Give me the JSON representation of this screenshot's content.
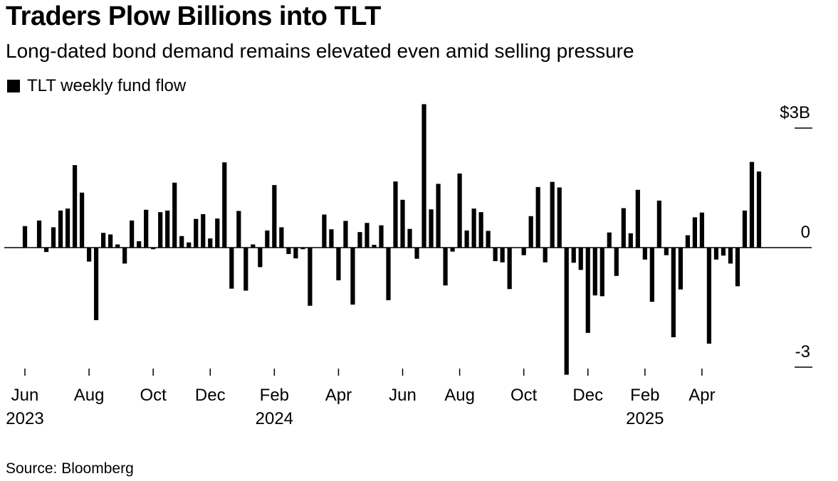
{
  "title": "Traders Plow Billions into TLT",
  "subtitle": "Long-dated bond demand remains elevated even amid selling pressure",
  "source": "Source: Bloomberg",
  "colors": {
    "bar": "#000000",
    "axis": "#000000",
    "background": "#ffffff"
  },
  "chart_data": {
    "type": "bar",
    "title": "Traders Plow Billions into TLT",
    "subtitle": "Long-dated bond demand remains elevated even amid selling pressure",
    "legend": [
      "TLT weekly fund flow"
    ],
    "legend_position": "top-left",
    "unit": "USD billions",
    "xlabel": "",
    "ylabel": "",
    "ylim": [
      -3.2,
      3.6
    ],
    "y_axis_side": "right",
    "y_ticks": [
      {
        "value": 3,
        "label": "$3B"
      },
      {
        "value": 0,
        "label": "0"
      },
      {
        "value": -3,
        "label": "-3"
      }
    ],
    "x_ticks": [
      {
        "label": "Jun",
        "year": "2023"
      },
      {
        "label": "Aug",
        "year": ""
      },
      {
        "label": "Oct",
        "year": ""
      },
      {
        "label": "Dec",
        "year": ""
      },
      {
        "label": "Feb",
        "year": "2024"
      },
      {
        "label": "Apr",
        "year": ""
      },
      {
        "label": "Jun",
        "year": ""
      },
      {
        "label": "Aug",
        "year": ""
      },
      {
        "label": "Oct",
        "year": ""
      },
      {
        "label": "Dec",
        "year": ""
      },
      {
        "label": "Feb",
        "year": "2025"
      },
      {
        "label": "Apr",
        "year": ""
      }
    ],
    "x_tick_weeks": [
      0,
      9,
      18,
      26,
      35,
      44,
      53,
      61,
      70,
      79,
      87,
      95
    ],
    "grid": false,
    "series": [
      {
        "name": "TLT weekly fund flow",
        "values": [
          0.54,
          0.0,
          0.68,
          -0.11,
          0.51,
          0.93,
          0.98,
          2.07,
          1.38,
          -0.35,
          -1.82,
          0.37,
          0.33,
          0.08,
          -0.4,
          0.68,
          0.16,
          0.95,
          -0.04,
          0.89,
          0.93,
          1.63,
          0.29,
          0.13,
          0.72,
          0.84,
          0.23,
          0.73,
          2.14,
          -1.03,
          0.92,
          -1.08,
          0.08,
          -0.49,
          0.43,
          1.57,
          0.51,
          -0.16,
          -0.27,
          -0.04,
          -1.46,
          0.0,
          0.83,
          0.46,
          -0.82,
          0.67,
          -1.43,
          0.39,
          0.62,
          0.07,
          0.56,
          -1.32,
          1.66,
          1.2,
          0.47,
          -0.28,
          3.6,
          0.96,
          1.6,
          -0.95,
          -0.1,
          1.86,
          0.43,
          0.98,
          0.89,
          0.42,
          -0.34,
          -0.37,
          -1.04,
          0.0,
          -0.19,
          0.79,
          1.52,
          -0.37,
          1.65,
          1.51,
          -3.19,
          -0.38,
          -0.56,
          -2.14,
          -1.2,
          -1.22,
          0.38,
          -0.71,
          0.99,
          0.36,
          1.45,
          -0.3,
          -1.36,
          1.18,
          -0.19,
          -2.25,
          -1.05,
          0.31,
          0.76,
          0.88,
          -2.41,
          -0.3,
          -0.2,
          -0.4,
          -0.97,
          0.93,
          2.15,
          1.91
        ]
      }
    ]
  }
}
